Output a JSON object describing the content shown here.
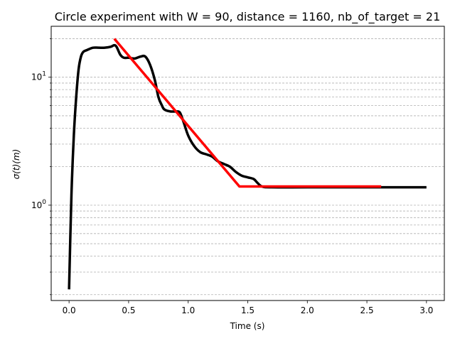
{
  "chart_data": {
    "type": "line",
    "title": "Circle experiment with W = 90, distance = 1160, nb_of_target = 21",
    "xlabel": "Time (s)",
    "ylabel": "σ(t)(m)",
    "y_scale": "log",
    "xlim": [
      -0.15,
      3.15
    ],
    "ylim": [
      0.18,
      25
    ],
    "x_ticks": [
      {
        "value": 0.0,
        "label": "0.0"
      },
      {
        "value": 0.5,
        "label": "0.5"
      },
      {
        "value": 1.0,
        "label": "1.0"
      },
      {
        "value": 1.5,
        "label": "1.5"
      },
      {
        "value": 2.0,
        "label": "2.0"
      },
      {
        "value": 2.5,
        "label": "2.5"
      },
      {
        "value": 3.0,
        "label": "3.0"
      }
    ],
    "y_major_ticks": [
      {
        "value": 1,
        "label": "10",
        "exponent": "0"
      },
      {
        "value": 10,
        "label": "10",
        "exponent": "1"
      }
    ],
    "y_minor_ticks": [
      0.2,
      0.3,
      0.4,
      0.5,
      0.6,
      0.7,
      0.8,
      0.9,
      2,
      3,
      4,
      5,
      6,
      7,
      8,
      9,
      20
    ],
    "grid": "horizontal dashed at minor and major y ticks",
    "series": [
      {
        "color": "#000000",
        "x": [
          0.0,
          0.02,
          0.04,
          0.06,
          0.08,
          0.1,
          0.12,
          0.15,
          0.2,
          0.25,
          0.3,
          0.35,
          0.38,
          0.4,
          0.43,
          0.46,
          0.5,
          0.55,
          0.6,
          0.64,
          0.68,
          0.72,
          0.75,
          0.78,
          0.8,
          0.85,
          0.9,
          0.93,
          0.96,
          1.0,
          1.05,
          1.1,
          1.15,
          1.2,
          1.25,
          1.3,
          1.35,
          1.4,
          1.45,
          1.5,
          1.55,
          1.58,
          1.62,
          1.7,
          2.0,
          2.5,
          3.0
        ],
        "y": [
          0.22,
          1.2,
          3.5,
          7.0,
          11.5,
          14.5,
          15.8,
          16.3,
          17.0,
          17.0,
          17.0,
          17.3,
          17.8,
          17.2,
          15.0,
          14.2,
          14.2,
          14.0,
          14.5,
          14.5,
          12.5,
          9.5,
          7.0,
          6.0,
          5.6,
          5.4,
          5.4,
          5.3,
          4.5,
          3.5,
          2.9,
          2.6,
          2.5,
          2.4,
          2.2,
          2.1,
          2.0,
          1.82,
          1.7,
          1.65,
          1.6,
          1.5,
          1.4,
          1.38,
          1.38,
          1.38,
          1.38
        ]
      },
      {
        "color": "#ff0000",
        "x": [
          0.38,
          1.43,
          2.62
        ],
        "y": [
          20.0,
          1.4,
          1.4
        ]
      }
    ]
  }
}
